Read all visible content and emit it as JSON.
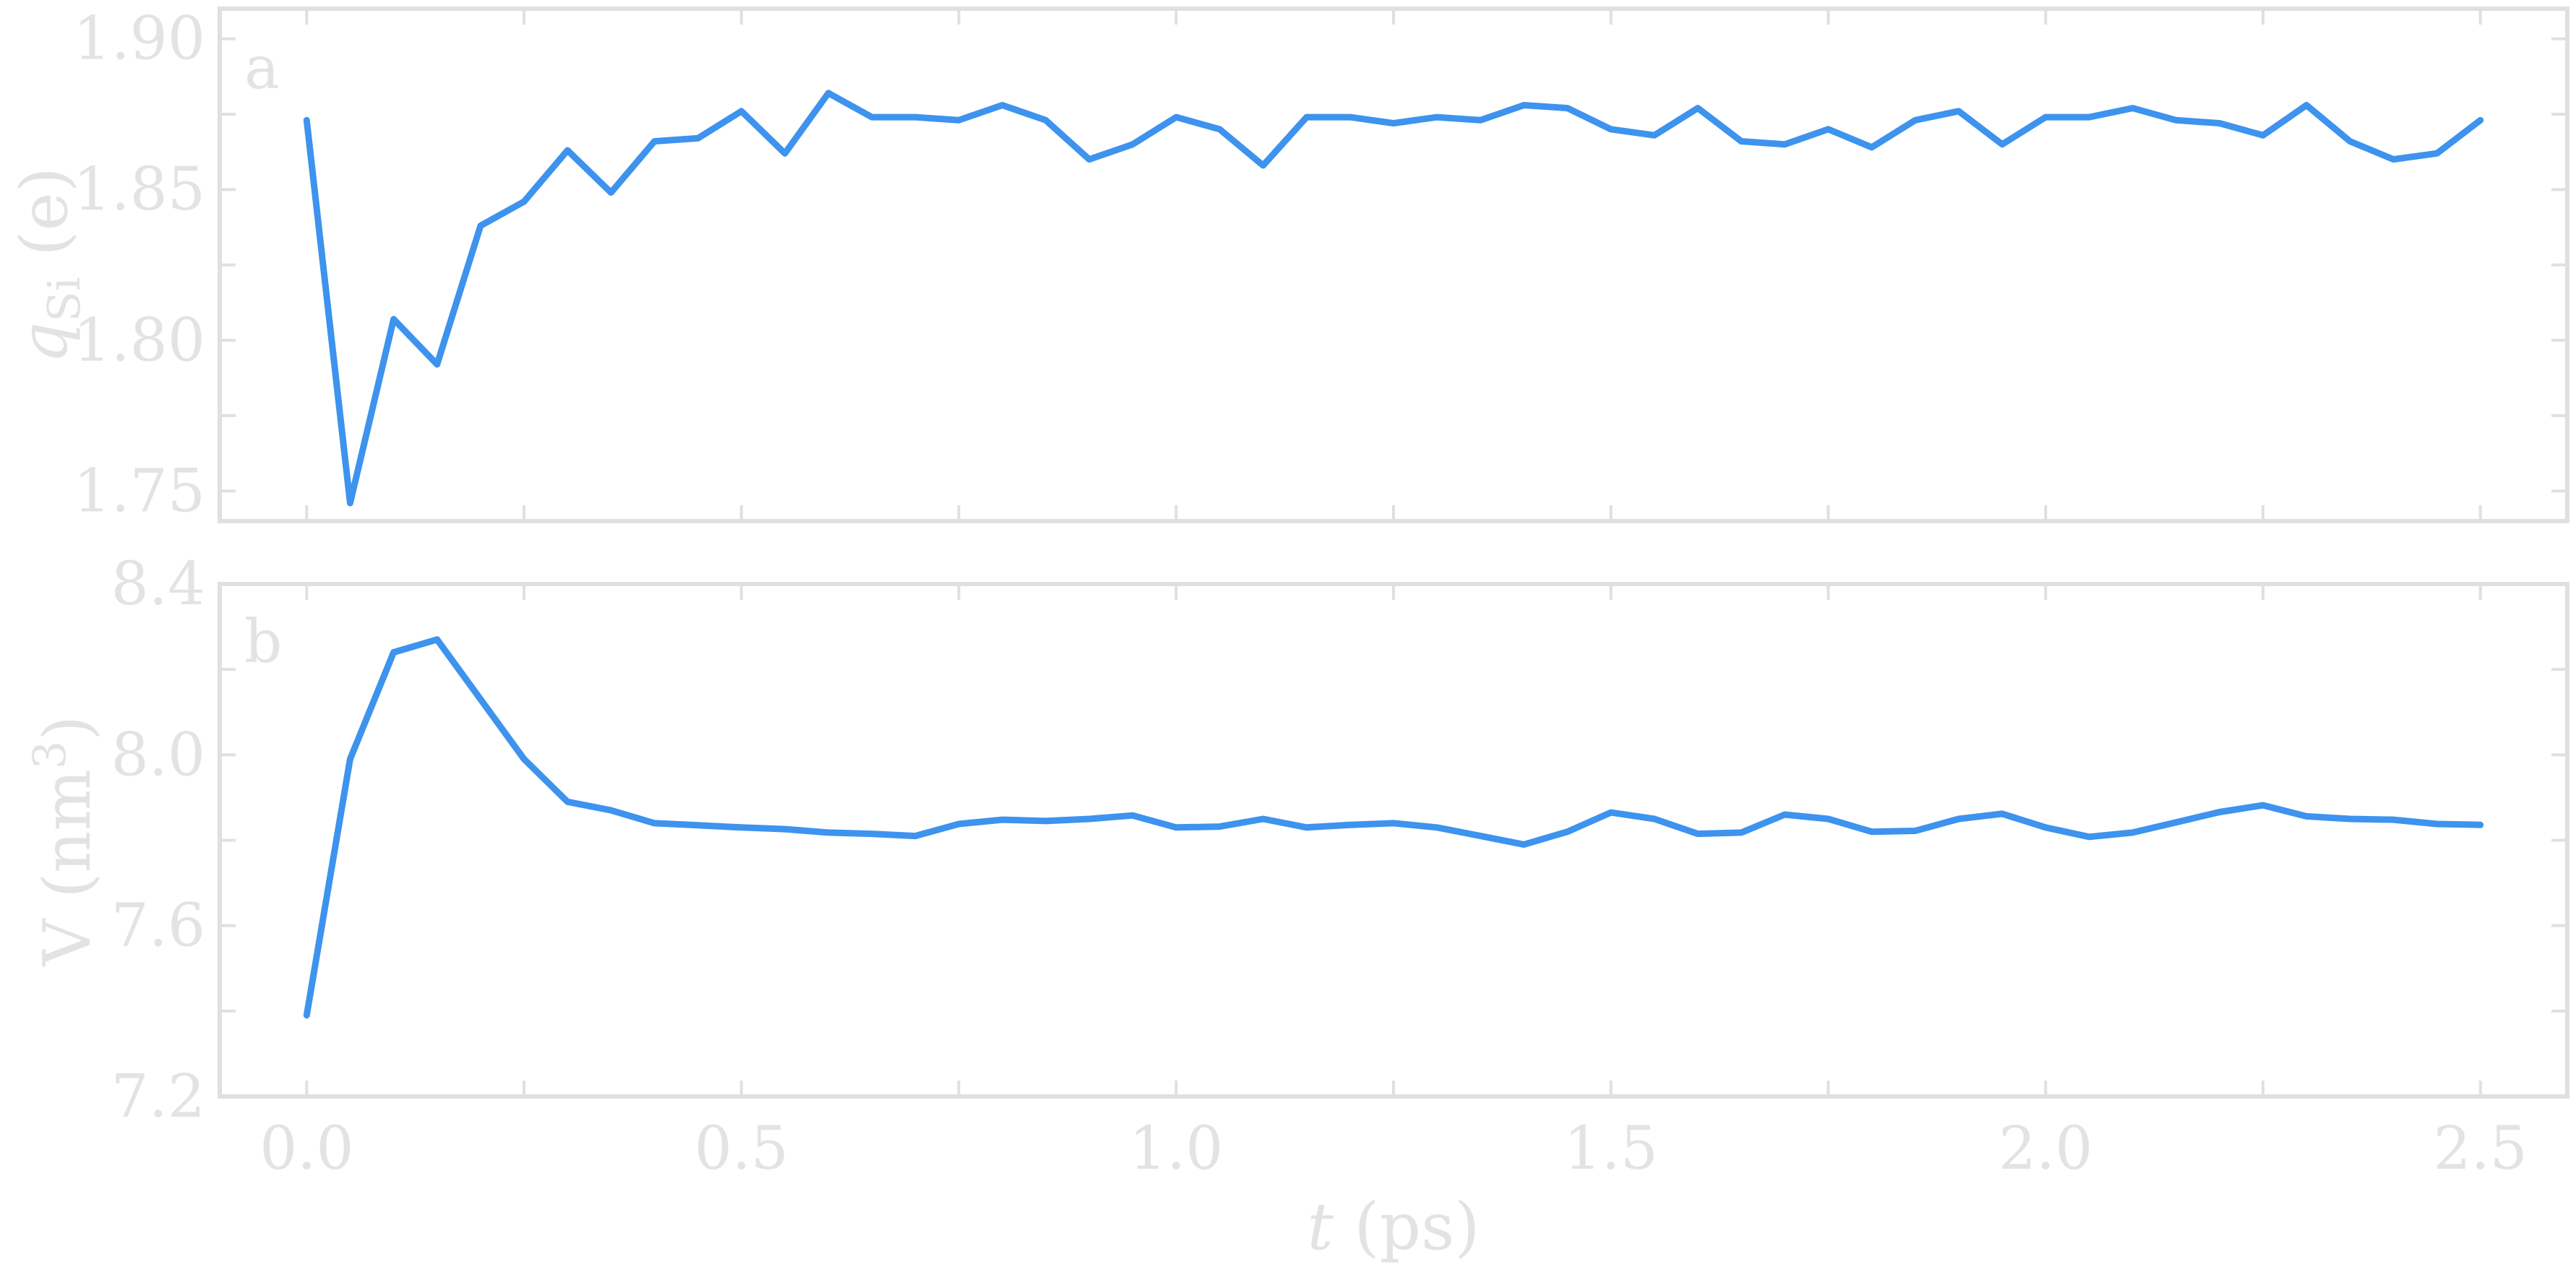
{
  "chart_data": [
    {
      "type": "line",
      "panel_label": "a",
      "ylabel": "q_Si (e)",
      "ylabel_parts": {
        "symbol": "q",
        "subscript": "Si",
        "unit": " (e)"
      },
      "xlim": [
        -0.1,
        2.6
      ],
      "ylim": [
        1.74,
        1.91
      ],
      "x_ticks": [
        0.0,
        0.25,
        0.5,
        0.75,
        1.0,
        1.25,
        1.5,
        1.75,
        2.0,
        2.25,
        2.5
      ],
      "y_ticks": [
        1.75,
        1.775,
        1.8,
        1.825,
        1.85,
        1.875,
        1.9
      ],
      "y_tick_labels": [
        {
          "value": 1.75,
          "label": "1.75"
        },
        {
          "value": 1.8,
          "label": "1.80"
        },
        {
          "value": 1.85,
          "label": "1.85"
        },
        {
          "value": 1.9,
          "label": "1.90"
        }
      ],
      "grid": false,
      "color": "#3d93ee",
      "x": [
        0.0,
        0.05,
        0.1,
        0.15,
        0.2,
        0.25,
        0.3,
        0.35,
        0.4,
        0.45,
        0.5,
        0.55,
        0.6,
        0.65,
        0.7,
        0.75,
        0.8,
        0.85,
        0.9,
        0.95,
        1.0,
        1.05,
        1.1,
        1.15,
        1.2,
        1.25,
        1.3,
        1.35,
        1.4,
        1.45,
        1.5,
        1.55,
        1.6,
        1.65,
        1.7,
        1.75,
        1.8,
        1.85,
        1.9,
        1.95,
        2.0,
        2.05,
        2.1,
        2.15,
        2.2,
        2.25,
        2.3,
        2.35,
        2.4,
        2.45,
        2.5
      ],
      "y": [
        1.873,
        1.746,
        1.807,
        1.792,
        1.838,
        1.846,
        1.863,
        1.849,
        1.866,
        1.867,
        1.876,
        1.862,
        1.882,
        1.874,
        1.874,
        1.873,
        1.878,
        1.873,
        1.86,
        1.865,
        1.874,
        1.87,
        1.858,
        1.874,
        1.874,
        1.872,
        1.874,
        1.873,
        1.878,
        1.877,
        1.87,
        1.868,
        1.877,
        1.866,
        1.865,
        1.87,
        1.864,
        1.873,
        1.876,
        1.865,
        1.874,
        1.874,
        1.877,
        1.873,
        1.872,
        1.868,
        1.878,
        1.866,
        1.86,
        1.862,
        1.873
      ]
    },
    {
      "type": "line",
      "panel_label": "b",
      "ylabel": "V (nm3)",
      "ylabel_parts": {
        "symbol": "V (nm",
        "superscript": "3",
        "unit": ")"
      },
      "xlabel": "t (ps)",
      "xlabel_parts": {
        "symbol": "t",
        "unit": " (ps)"
      },
      "xlim": [
        -0.1,
        2.6
      ],
      "ylim": [
        7.2,
        8.4
      ],
      "x_ticks": [
        0.0,
        0.25,
        0.5,
        0.75,
        1.0,
        1.25,
        1.5,
        1.75,
        2.0,
        2.25,
        2.5
      ],
      "x_tick_labels": [
        {
          "value": 0.0,
          "label": "0.0"
        },
        {
          "value": 0.5,
          "label": "0.5"
        },
        {
          "value": 1.0,
          "label": "1.0"
        },
        {
          "value": 1.5,
          "label": "1.5"
        },
        {
          "value": 2.0,
          "label": "2.0"
        },
        {
          "value": 2.5,
          "label": "2.5"
        }
      ],
      "y_ticks": [
        7.2,
        7.4,
        7.6,
        7.8,
        8.0,
        8.2,
        8.4
      ],
      "y_tick_labels": [
        {
          "value": 7.2,
          "label": "7.2"
        },
        {
          "value": 7.6,
          "label": "7.6"
        },
        {
          "value": 8.0,
          "label": "8.0"
        },
        {
          "value": 8.4,
          "label": "8.4"
        }
      ],
      "grid": false,
      "color": "#3d93ee",
      "x": [
        0.0,
        0.05,
        0.1,
        0.15,
        0.2,
        0.25,
        0.3,
        0.35,
        0.4,
        0.45,
        0.5,
        0.55,
        0.6,
        0.65,
        0.7,
        0.75,
        0.8,
        0.85,
        0.9,
        0.95,
        1.0,
        1.05,
        1.1,
        1.15,
        1.2,
        1.25,
        1.3,
        1.35,
        1.4,
        1.45,
        1.5,
        1.55,
        1.6,
        1.65,
        1.7,
        1.75,
        1.8,
        1.85,
        1.9,
        1.95,
        2.0,
        2.05,
        2.1,
        2.15,
        2.2,
        2.25,
        2.3,
        2.35,
        2.4,
        2.45,
        2.5
      ],
      "y": [
        7.39,
        7.99,
        8.24,
        8.27,
        8.13,
        7.99,
        7.89,
        7.87,
        7.84,
        7.835,
        7.83,
        7.826,
        7.818,
        7.815,
        7.81,
        7.838,
        7.848,
        7.845,
        7.85,
        7.858,
        7.83,
        7.832,
        7.85,
        7.83,
        7.836,
        7.84,
        7.83,
        7.81,
        7.79,
        7.82,
        7.865,
        7.85,
        7.815,
        7.818,
        7.86,
        7.85,
        7.82,
        7.822,
        7.85,
        7.862,
        7.83,
        7.808,
        7.818,
        7.842,
        7.866,
        7.882,
        7.856,
        7.85,
        7.848,
        7.838,
        7.836
      ]
    }
  ]
}
